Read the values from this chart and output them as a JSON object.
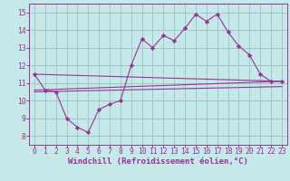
{
  "x_values": [
    0,
    1,
    2,
    3,
    4,
    5,
    6,
    7,
    8,
    9,
    10,
    11,
    12,
    13,
    14,
    15,
    16,
    17,
    18,
    19,
    20,
    21,
    22,
    23
  ],
  "line1": [
    11.5,
    10.6,
    10.5,
    9.0,
    8.5,
    8.2,
    9.5,
    9.8,
    10.0,
    12.0,
    13.5,
    13.0,
    13.7,
    13.4,
    14.1,
    14.9,
    14.5,
    14.9,
    13.9,
    13.1,
    12.6,
    11.5,
    11.1,
    11.1
  ],
  "line2_x": [
    0,
    23
  ],
  "line2_y": [
    11.5,
    11.1
  ],
  "line3_x": [
    0,
    23
  ],
  "line3_y": [
    10.6,
    11.1
  ],
  "line4_x": [
    0,
    23
  ],
  "line4_y": [
    10.5,
    10.8
  ],
  "background_color": "#c5e8e8",
  "grid_color": "#a0c8c8",
  "line_color": "#993399",
  "marker": "D",
  "xlabel": "Windchill (Refroidissement éolien,°C)",
  "ylim": [
    7.5,
    15.5
  ],
  "xlim": [
    -0.5,
    23.5
  ],
  "yticks": [
    8,
    9,
    10,
    11,
    12,
    13,
    14,
    15
  ],
  "xticks": [
    0,
    1,
    2,
    3,
    4,
    5,
    6,
    7,
    8,
    9,
    10,
    11,
    12,
    13,
    14,
    15,
    16,
    17,
    18,
    19,
    20,
    21,
    22,
    23
  ],
  "xlabel_fontsize": 6.5,
  "tick_fontsize": 5.8
}
